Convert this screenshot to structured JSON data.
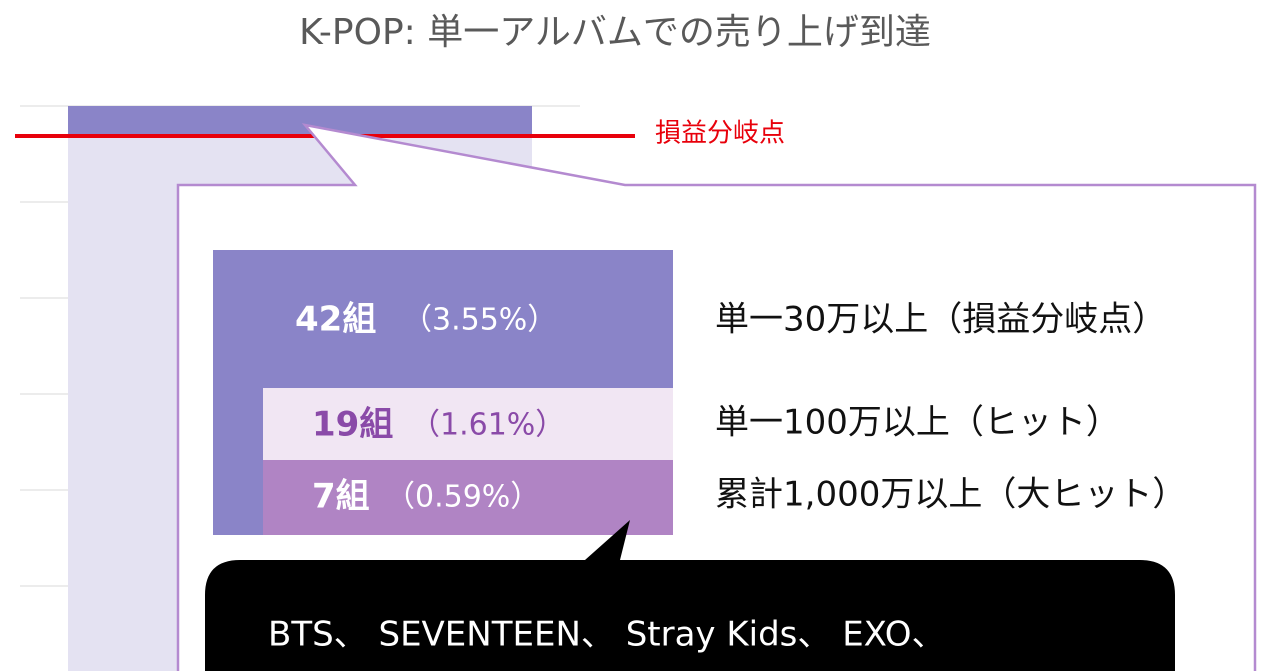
{
  "title": "K-POP: 単一アルバムでの売り上げ到達",
  "line_label": "損益分岐点",
  "rows": [
    {
      "count": "42組",
      "share": "（3.55%）",
      "label": "単一30万以上（損益分岐点）"
    },
    {
      "count": "19組",
      "share": "（1.61%）",
      "label": "単一100万以上（ヒット）"
    },
    {
      "count": "7組",
      "share": "（0.59%）",
      "label": "累計1,000万以上（大ヒット）"
    }
  ],
  "callout": "BTS、 SEVENTEEN、 Stray Kids、 EXO、"
}
